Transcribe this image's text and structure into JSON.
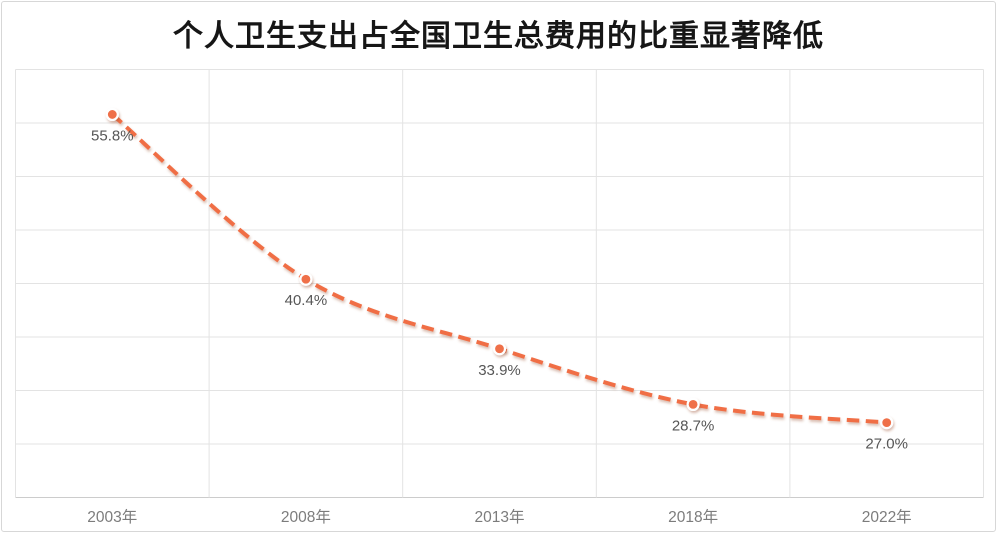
{
  "page": {
    "background_color": "#ffffff",
    "card_border_color": "#d7d7d7"
  },
  "chart_data": {
    "type": "line",
    "title": "个人卫生支出占全国卫生总费用的比重显著降低",
    "categories": [
      "2003年",
      "2008年",
      "2013年",
      "2018年",
      "2022年"
    ],
    "series": [
      {
        "name": "个人卫生支出占全国卫生总费用的比重",
        "values": [
          55.8,
          40.4,
          33.9,
          28.7,
          27.0
        ]
      }
    ],
    "data_labels": [
      "55.8%",
      "40.4%",
      "33.9%",
      "28.7%",
      "27.0%"
    ],
    "xlabel": "",
    "ylabel": "",
    "ylim": [
      20,
      60
    ],
    "y_gridline_step": 5,
    "grid": true,
    "legend_position": "none",
    "line_style": "dashed",
    "smoothed": true,
    "colors": {
      "line": "#F06E45",
      "marker_fill": "#EF6F48",
      "marker_ring": "#ffffff",
      "gridline": "#e3e3e3",
      "axis_line": "#cccccc",
      "title_text": "#161616",
      "data_label_text": "#565656",
      "axis_label_text": "#7c7c7c"
    }
  }
}
